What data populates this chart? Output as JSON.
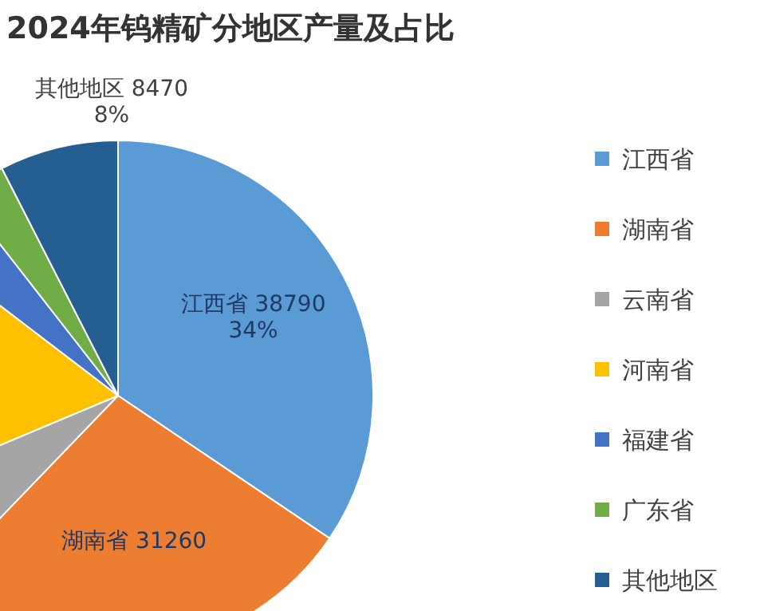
{
  "chart_data": {
    "type": "pie",
    "title": "2024年钨精矿分地区产量及占比",
    "categories": [
      "江西省",
      "湖南省",
      "云南省",
      "河南省",
      "福建省",
      "广东省",
      "其他地区"
    ],
    "values": [
      38790,
      31260,
      7300,
      18800,
      4600,
      3400,
      8470
    ],
    "colors": [
      "#5b9bd5",
      "#ed7d31",
      "#a5a5a5",
      "#ffc000",
      "#4472c4",
      "#70ad47",
      "#255e91"
    ],
    "value_labels": [
      "江西省 38790\n34%",
      "湖南省 31260",
      null,
      null,
      null,
      null,
      "其他地区 8470\n8%"
    ],
    "legend": "right"
  }
}
